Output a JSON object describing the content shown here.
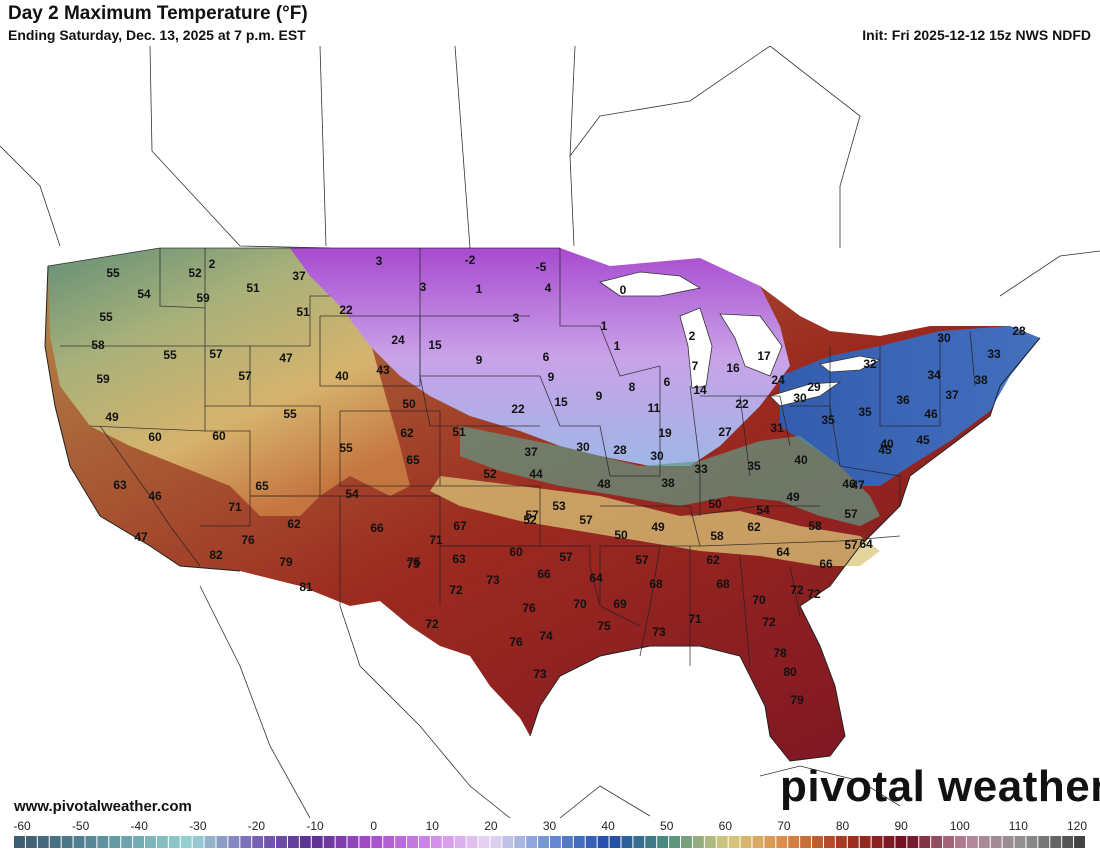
{
  "header": {
    "title": "Day 2 Maximum Temperature (°F)",
    "subtitle": "Ending Saturday, Dec. 13, 2025 at 7 p.m. EST",
    "init": "Init: Fri 2025-12-12 15z NWS NDFD"
  },
  "footer": {
    "website": "www.pivotalweather.com",
    "brand": "pivotal weather"
  },
  "colorbar": {
    "ticks": [
      "-60",
      "-50",
      "-40",
      "-30",
      "-20",
      "-10",
      "0",
      "10",
      "20",
      "30",
      "40",
      "50",
      "60",
      "70",
      "80",
      "90",
      "100",
      "110",
      "120"
    ]
  },
  "map_data": {
    "variable": "Maximum Temperature",
    "unit": "°F",
    "point_values": [
      "55",
      "52",
      "2",
      "37",
      "3",
      "-2",
      "-5",
      "54",
      "59",
      "51",
      "51",
      "3",
      "1",
      "4",
      "0",
      "55",
      "22",
      "3",
      "58",
      "55",
      "57",
      "24",
      "15",
      "1",
      "2",
      "59",
      "47",
      "9",
      "6",
      "1",
      "17",
      "57",
      "40",
      "43",
      "9",
      "7",
      "16",
      "8",
      "6",
      "50",
      "15",
      "9",
      "14",
      "24",
      "49",
      "55",
      "22",
      "11",
      "22",
      "60",
      "60",
      "62",
      "51",
      "30",
      "30",
      "19",
      "27",
      "31",
      "55",
      "37",
      "28",
      "30",
      "29",
      "32",
      "30",
      "34",
      "33",
      "28",
      "38",
      "37",
      "35",
      "36",
      "35",
      "46",
      "45",
      "40",
      "40",
      "33",
      "35",
      "47",
      "45",
      "65",
      "52",
      "44",
      "48",
      "38",
      "49",
      "54",
      "50",
      "46",
      "63",
      "65",
      "54",
      "53",
      "52",
      "57",
      "57",
      "58",
      "57",
      "46",
      "71",
      "66",
      "67",
      "57",
      "50",
      "49",
      "64",
      "47",
      "62",
      "71",
      "75",
      "63",
      "60",
      "57",
      "58",
      "62",
      "76",
      "82",
      "79",
      "75",
      "73",
      "66",
      "64",
      "57",
      "62",
      "64",
      "66",
      "81",
      "72",
      "68",
      "68",
      "70",
      "72",
      "72",
      "70",
      "69",
      "71",
      "72",
      "72",
      "76",
      "74",
      "75",
      "73",
      "76",
      "73",
      "78",
      "80",
      "79"
    ]
  }
}
